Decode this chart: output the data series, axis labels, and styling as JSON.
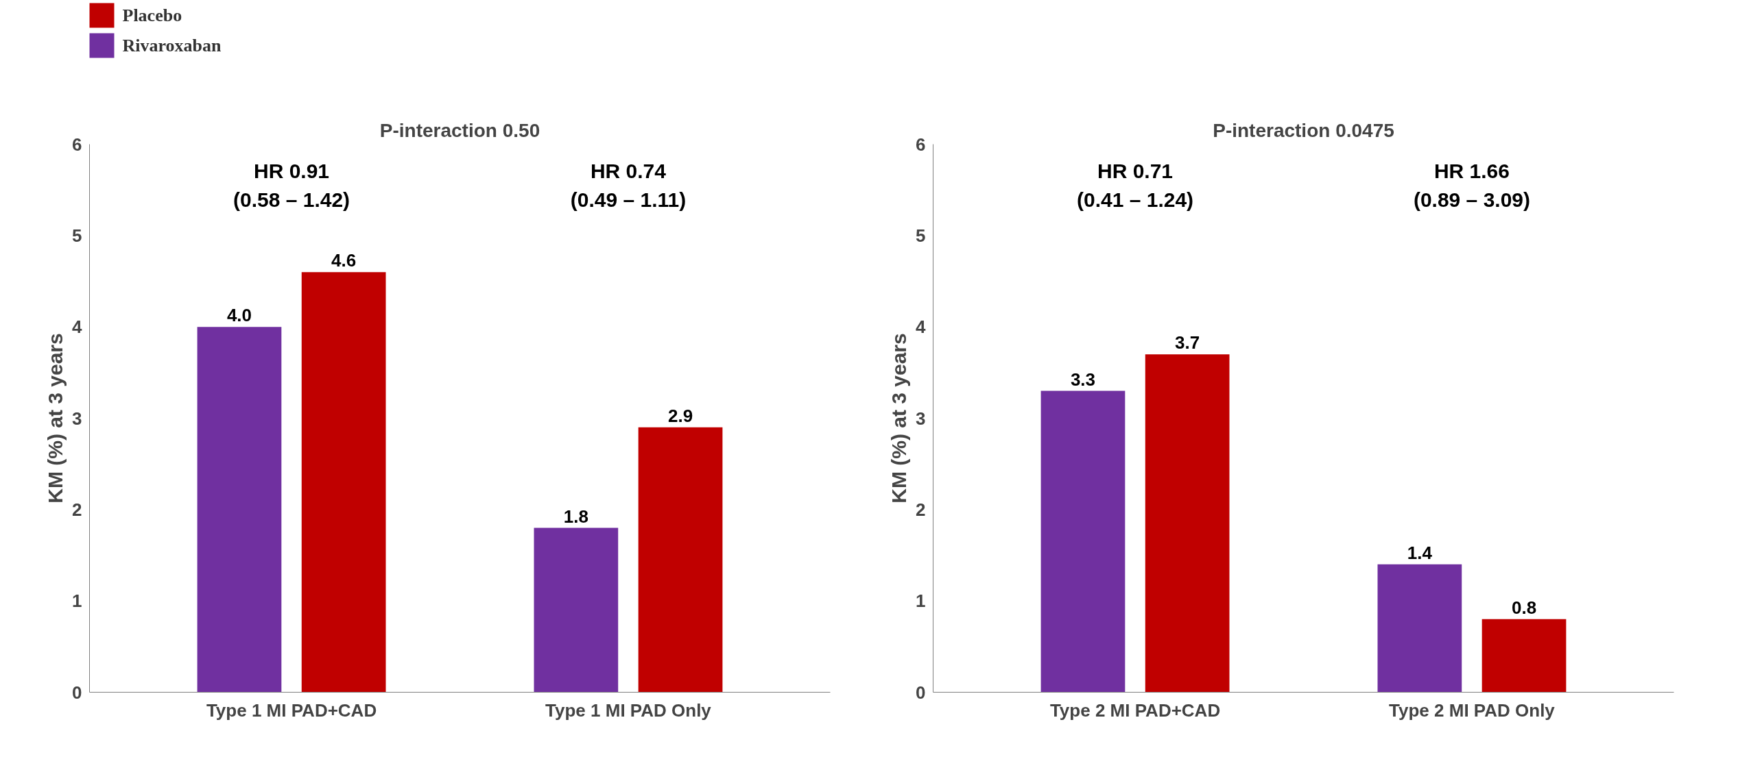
{
  "chart_data": [
    {
      "type": "bar",
      "title": "P-interaction 0.50",
      "ylabel": "KM (%) at 3 years",
      "categories": [
        "Type 1 MI PAD+CAD",
        "Type 1 MI PAD Only"
      ],
      "series": [
        {
          "name": "Rivaroxaban",
          "color": "#7030a0",
          "values": [
            4.0,
            1.8
          ],
          "value_labels": [
            "4.0",
            "1.8"
          ]
        },
        {
          "name": "Placebo",
          "color": "#c00000",
          "values": [
            4.6,
            2.9
          ],
          "value_labels": [
            "4.6",
            "2.9"
          ]
        }
      ],
      "ylim": [
        0,
        6
      ],
      "yticks": [
        0,
        1,
        2,
        3,
        4,
        5,
        6
      ],
      "grid": false,
      "legend": "top left",
      "annotations": [
        "HR 0.91\n(0.58 – 1.42)",
        "HR 0.74\n(0.49 – 1.11)"
      ]
    },
    {
      "type": "bar",
      "title": "P-interaction 0.0475",
      "ylabel": "KM (%) at 3 years",
      "categories": [
        "Type 2 MI PAD+CAD",
        "Type 2 MI PAD Only"
      ],
      "series": [
        {
          "color": "#7030a0",
          "values": [
            3.3,
            1.4
          ],
          "value_labels": [
            "3.3",
            "1.4"
          ]
        },
        {
          "color": "#c00000",
          "values": [
            3.7,
            0.8
          ],
          "value_labels": [
            "3.7",
            "0.8"
          ]
        }
      ],
      "ylim": [
        0,
        6
      ],
      "yticks": [
        0,
        1,
        2,
        3,
        4,
        5,
        6
      ],
      "grid": false,
      "annotations": [
        "HR 0.71\n(0.41 – 1.24)",
        "HR 1.66\n(0.89 – 3.09)"
      ]
    }
  ]
}
